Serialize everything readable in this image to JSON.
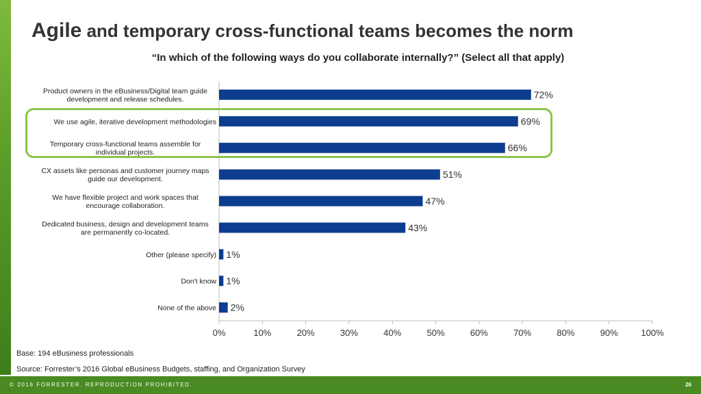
{
  "slide": {
    "title_lead": "Agile",
    "title_rest": " and temporary cross-functional teams becomes the norm",
    "subtitle": "“In which of the following ways do you collaborate internally?”  (Select all that apply)",
    "base_note": "Base: 194 eBusiness professionals",
    "source_note": "Source: Forrester’s 2016 Global eBusiness Budgets, staffing, and Organization Survey",
    "footer_text": "© 2016 FORRESTER. REPRODUCTION PROHIBITED.",
    "page_number": "26"
  },
  "colors": {
    "bar": "#0d3d8f",
    "brand_green": "#4a8a22",
    "highlight": "#8bc34a"
  },
  "chart_data": {
    "type": "bar",
    "orientation": "horizontal",
    "categories": [
      [
        "Product owners in the eBusiness/Digital team guide",
        "development and release schedules."
      ],
      [
        "We use agile, iterative development methodologies"
      ],
      [
        "Temporary cross-functional teams assemble for",
        "individual projects."
      ],
      [
        "CX assets like personas and customer journey maps",
        "guide our development."
      ],
      [
        "We have flexible project and work spaces that",
        "encourage collaboration."
      ],
      [
        "Dedicated business, design and development teams",
        "are permanently co-located."
      ],
      [
        "Other (please specify)"
      ],
      [
        "Don't know"
      ],
      [
        "None of the above"
      ]
    ],
    "values": [
      72,
      69,
      66,
      51,
      47,
      43,
      1,
      1,
      2
    ],
    "value_labels": [
      "72%",
      "69%",
      "66%",
      "51%",
      "47%",
      "43%",
      "1%",
      "1%",
      "2%"
    ],
    "xlim": [
      0,
      100
    ],
    "x_ticks": [
      "0%",
      "10%",
      "20%",
      "30%",
      "40%",
      "50%",
      "60%",
      "70%",
      "80%",
      "90%",
      "100%"
    ],
    "grid": false,
    "legend": "none",
    "highlighted_categories": [
      1,
      2
    ]
  }
}
